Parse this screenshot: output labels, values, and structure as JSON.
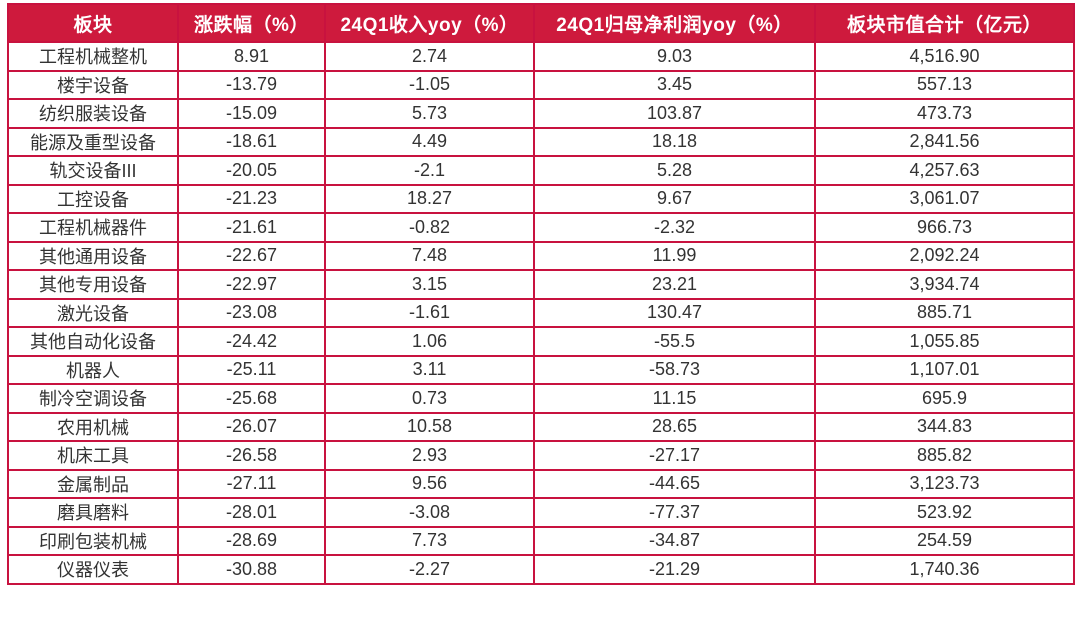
{
  "colors": {
    "background": "#FFFFFF",
    "header_bg": "#CE1A3D",
    "header_text": "#FFFFFF",
    "border": "#C8123F",
    "cell_text": "#333333"
  },
  "chart_data": {
    "type": "table",
    "columns": [
      "板块",
      "涨跌幅（%）",
      "24Q1收入yoy（%）",
      "24Q1归母净利润yoy（%）",
      "板块市值合计（亿元）"
    ],
    "rows": [
      [
        "工程机械整机",
        "8.91",
        "2.74",
        "9.03",
        "4,516.90"
      ],
      [
        "楼宇设备",
        "-13.79",
        "-1.05",
        "3.45",
        "557.13"
      ],
      [
        "纺织服装设备",
        "-15.09",
        "5.73",
        "103.87",
        "473.73"
      ],
      [
        "能源及重型设备",
        "-18.61",
        "4.49",
        "18.18",
        "2,841.56"
      ],
      [
        "轨交设备III",
        "-20.05",
        "-2.1",
        "5.28",
        "4,257.63"
      ],
      [
        "工控设备",
        "-21.23",
        "18.27",
        "9.67",
        "3,061.07"
      ],
      [
        "工程机械器件",
        "-21.61",
        "-0.82",
        "-2.32",
        "966.73"
      ],
      [
        "其他通用设备",
        "-22.67",
        "7.48",
        "11.99",
        "2,092.24"
      ],
      [
        "其他专用设备",
        "-22.97",
        "3.15",
        "23.21",
        "3,934.74"
      ],
      [
        "激光设备",
        "-23.08",
        "-1.61",
        "130.47",
        "885.71"
      ],
      [
        "其他自动化设备",
        "-24.42",
        "1.06",
        "-55.5",
        "1,055.85"
      ],
      [
        "机器人",
        "-25.11",
        "3.11",
        "-58.73",
        "1,107.01"
      ],
      [
        "制冷空调设备",
        "-25.68",
        "0.73",
        "11.15",
        "695.9"
      ],
      [
        "农用机械",
        "-26.07",
        "10.58",
        "28.65",
        "344.83"
      ],
      [
        "机床工具",
        "-26.58",
        "2.93",
        "-27.17",
        "885.82"
      ],
      [
        "金属制品",
        "-27.11",
        "9.56",
        "-44.65",
        "3,123.73"
      ],
      [
        "磨具磨料",
        "-28.01",
        "-3.08",
        "-77.37",
        "523.92"
      ],
      [
        "印刷包装机械",
        "-28.69",
        "7.73",
        "-34.87",
        "254.59"
      ],
      [
        "仪器仪表",
        "-30.88",
        "-2.27",
        "-21.29",
        "1,740.36"
      ]
    ]
  }
}
